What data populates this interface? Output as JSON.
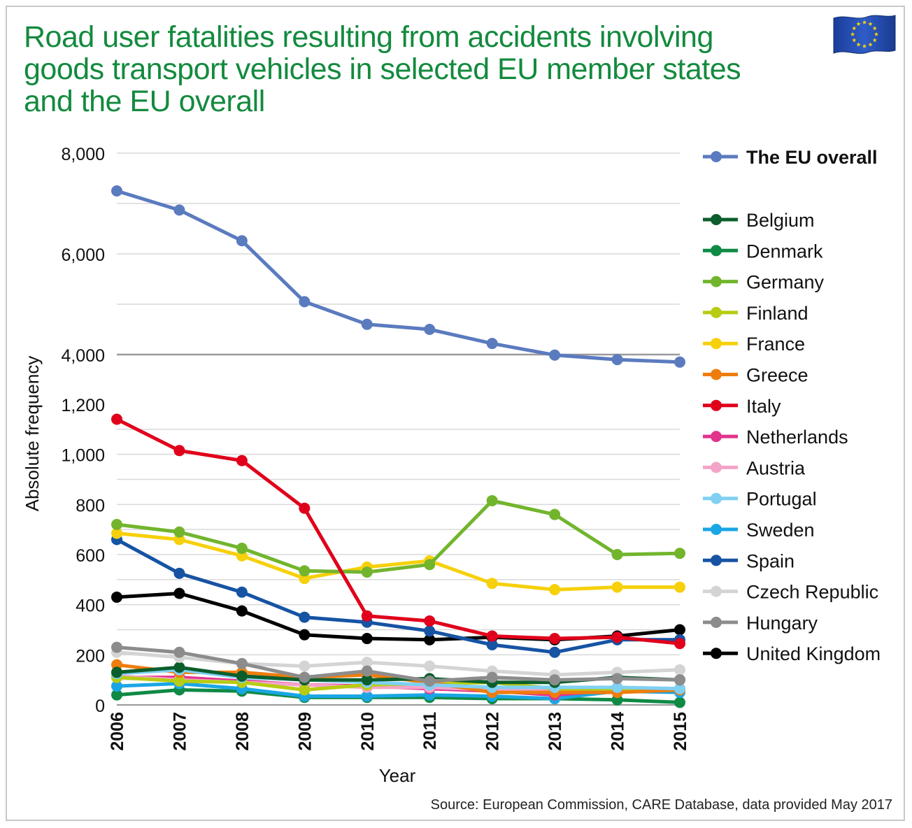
{
  "title_lines": [
    "Road user fatalities resulting from accidents involving",
    "goods transport vehicles in selected EU member states",
    "and the EU overall"
  ],
  "source": "Source: European Commission, CARE Database, data provided May 2017",
  "flag_icon": "eu-flag-icon",
  "colors": {
    "title": "#138a3e",
    "grid": "#d9d9d9",
    "break_line": "#9a9a9a"
  },
  "chart_data": {
    "type": "line",
    "title": "Road user fatalities resulting from accidents involving goods transport vehicles in selected EU member states and the EU overall",
    "xlabel": "Year",
    "ylabel": "Absolute frequency",
    "x": [
      "2006",
      "2007",
      "2008",
      "2009",
      "2010",
      "2011",
      "2012",
      "2013",
      "2014",
      "2015"
    ],
    "y_axis_note": "broken axis: 0-1,200 linear lower scale, 4,000-8,000 upper scale",
    "ylim_lower": [
      0,
      1200
    ],
    "ylim_upper": [
      4000,
      8000
    ],
    "yticks_lower": [
      0,
      200,
      400,
      600,
      800,
      1000,
      1200
    ],
    "yticks_upper": [
      4000,
      6000,
      8000
    ],
    "ytick_labels_lower": [
      "0",
      "200",
      "400",
      "600",
      "800",
      "1,000",
      "1,200"
    ],
    "ytick_labels_upper": [
      "4,000",
      "6,000",
      "8,000"
    ],
    "legend_position": "right",
    "series": [
      {
        "name": "The EU overall",
        "color": "#5b7bbf",
        "bold": true,
        "axis": "upper",
        "values": [
          7250,
          6870,
          6260,
          5050,
          4600,
          4500,
          4220,
          3990,
          3900,
          3850
        ]
      },
      {
        "name": "Belgium",
        "color": "#0b5e2c",
        "values": [
          130,
          150,
          115,
          100,
          100,
          105,
          90,
          90,
          110,
          100
        ]
      },
      {
        "name": "Denmark",
        "color": "#0f8a45",
        "values": [
          40,
          60,
          55,
          30,
          30,
          30,
          25,
          25,
          20,
          10
        ]
      },
      {
        "name": "Germany",
        "color": "#72b52d",
        "values": [
          720,
          690,
          625,
          535,
          530,
          560,
          815,
          760,
          600,
          605
        ]
      },
      {
        "name": "Finland",
        "color": "#b7cc12",
        "values": [
          110,
          95,
          90,
          60,
          80,
          85,
          90,
          65,
          60,
          65
        ]
      },
      {
        "name": "France",
        "color": "#f6d00a",
        "values": [
          685,
          660,
          595,
          505,
          550,
          575,
          485,
          460,
          470,
          470
        ]
      },
      {
        "name": "Greece",
        "color": "#ee7d0e",
        "values": [
          160,
          130,
          130,
          110,
          120,
          90,
          50,
          50,
          50,
          60
        ]
      },
      {
        "name": "Italy",
        "color": "#e0001b",
        "values": [
          1140,
          1015,
          975,
          785,
          355,
          335,
          275,
          265,
          270,
          245
        ]
      },
      {
        "name": "Netherlands",
        "color": "#e2338c",
        "values": [
          110,
          110,
          95,
          80,
          75,
          65,
          55,
          40,
          60,
          60
        ]
      },
      {
        "name": "Austria",
        "color": "#f4a4c8",
        "values": [
          115,
          100,
          90,
          80,
          70,
          70,
          60,
          60,
          60,
          60
        ]
      },
      {
        "name": "Portugal",
        "color": "#7fd0f3",
        "values": [
          125,
          140,
          110,
          100,
          90,
          80,
          70,
          70,
          70,
          65
        ]
      },
      {
        "name": "Sweden",
        "color": "#1aa6e5",
        "values": [
          75,
          85,
          65,
          35,
          35,
          40,
          35,
          25,
          55,
          50
        ]
      },
      {
        "name": "Spain",
        "color": "#1653a3",
        "values": [
          660,
          525,
          450,
          350,
          330,
          295,
          240,
          210,
          260,
          260
        ]
      },
      {
        "name": "Czech Republic",
        "color": "#d4d4d4",
        "values": [
          210,
          190,
          165,
          155,
          170,
          155,
          135,
          120,
          130,
          140
        ]
      },
      {
        "name": "Hungary",
        "color": "#8c8c8c",
        "values": [
          230,
          210,
          165,
          110,
          135,
          95,
          110,
          100,
          105,
          100
        ]
      },
      {
        "name": "United Kingdom",
        "color": "#000000",
        "values": [
          430,
          445,
          375,
          280,
          265,
          260,
          270,
          260,
          275,
          300
        ]
      }
    ]
  }
}
